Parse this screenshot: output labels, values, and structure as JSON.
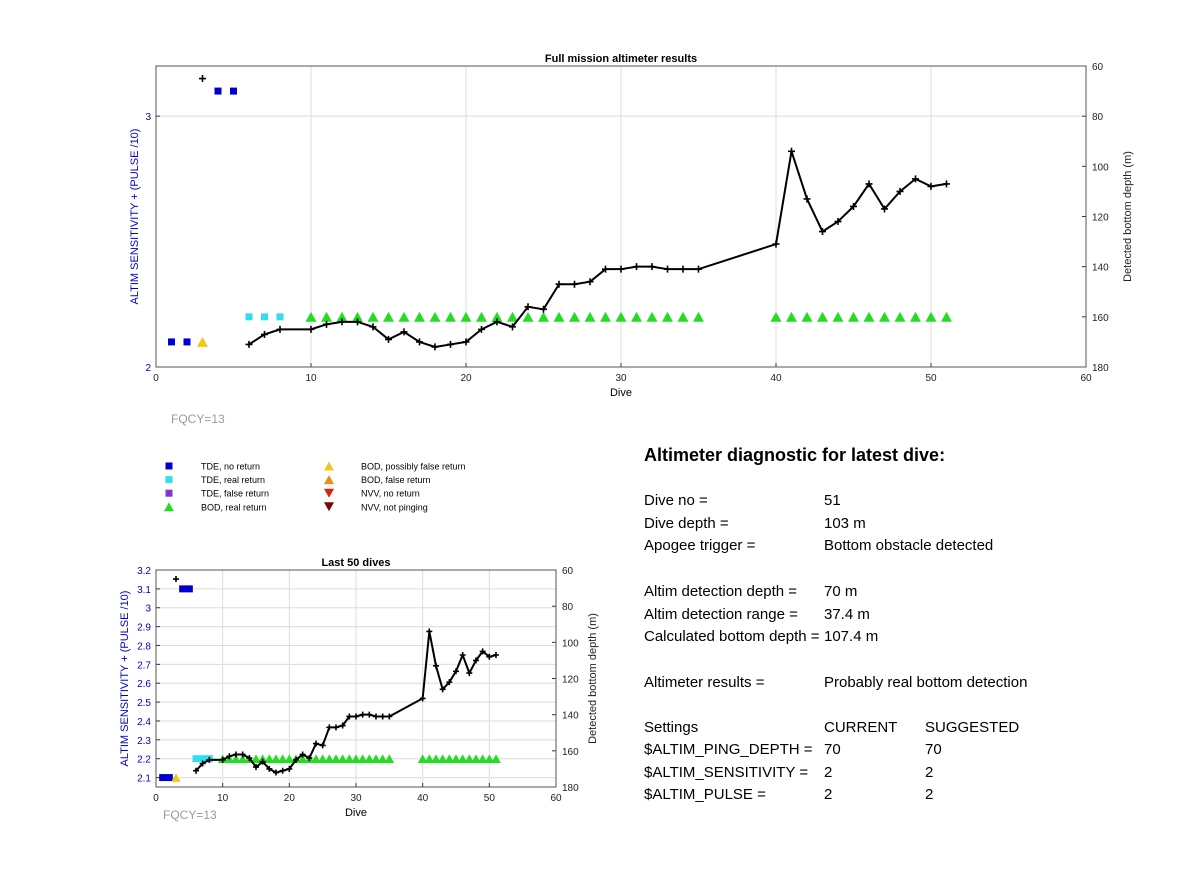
{
  "chart_data": [
    {
      "type": "scatter",
      "title": "Full mission altimeter results",
      "xlabel": "Dive",
      "ylabel_left": "ALTIM SENSITIVITY + (PULSE /10)",
      "ylabel_right": "Detected bottom depth (m)",
      "xlim": [
        0,
        60
      ],
      "ylim_left": [
        2,
        3.2
      ],
      "ylim_right": [
        60,
        180
      ],
      "right_axis_reversed": true,
      "xticks": [
        "0",
        "10",
        "20",
        "30",
        "40",
        "50",
        "60"
      ],
      "yticks_left": [
        "2",
        "3"
      ],
      "yticks_right": [
        "60",
        "80",
        "100",
        "120",
        "140",
        "160",
        "180"
      ],
      "grid": true,
      "annotation": "FQCY=13",
      "series": [
        {
          "name": "TDE, no return",
          "marker": "square",
          "color": "#0000cc",
          "x": [
            1,
            2,
            4,
            5
          ],
          "y": [
            2.1,
            2.1,
            3.1,
            3.1
          ]
        },
        {
          "name": "TDE, real return",
          "marker": "square",
          "color": "#33ddee",
          "x": [
            6,
            7,
            8
          ],
          "y": [
            2.2,
            2.2,
            2.2
          ]
        },
        {
          "name": "BOD, possibly false return",
          "marker": "triangle-up",
          "color": "#f5c518",
          "x": [
            3
          ],
          "y": [
            2.1
          ]
        },
        {
          "name": "BOD, real return",
          "marker": "triangle-up",
          "color": "#22dd22",
          "x": [
            10,
            11,
            12,
            13,
            14,
            15,
            16,
            17,
            18,
            19,
            20,
            21,
            22,
            23,
            24,
            25,
            26,
            27,
            28,
            29,
            30,
            31,
            32,
            33,
            34,
            35,
            40,
            41,
            42,
            43,
            44,
            45,
            46,
            47,
            48,
            49,
            50,
            51
          ],
          "y": [
            2.2,
            2.2,
            2.2,
            2.2,
            2.2,
            2.2,
            2.2,
            2.2,
            2.2,
            2.2,
            2.2,
            2.2,
            2.2,
            2.2,
            2.2,
            2.2,
            2.2,
            2.2,
            2.2,
            2.2,
            2.2,
            2.2,
            2.2,
            2.2,
            2.2,
            2.2,
            2.2,
            2.2,
            2.2,
            2.2,
            2.2,
            2.2,
            2.2,
            2.2,
            2.2,
            2.2,
            2.2,
            2.2
          ]
        },
        {
          "name": "Detected bottom depth",
          "marker": "plus-line",
          "color": "#000000",
          "axis": "right",
          "x": [
            3,
            6,
            7,
            8,
            10,
            11,
            12,
            13,
            14,
            15,
            16,
            17,
            18,
            19,
            20,
            21,
            22,
            23,
            24,
            25,
            26,
            27,
            28,
            29,
            30,
            31,
            32,
            33,
            34,
            35,
            40,
            41,
            42,
            43,
            44,
            45,
            46,
            47,
            48,
            49,
            50,
            51
          ],
          "y": [
            65,
            171,
            167,
            165,
            165,
            163,
            162,
            162,
            164,
            169,
            166,
            170,
            172,
            171,
            170,
            165,
            162,
            164,
            156,
            157,
            147,
            147,
            146,
            141,
            141,
            140,
            140,
            141,
            141,
            141,
            131,
            94,
            113,
            126,
            122,
            116,
            107,
            117,
            110,
            105,
            108,
            107
          ]
        }
      ]
    },
    {
      "type": "scatter",
      "title": "Last 50 dives",
      "xlabel": "Dive",
      "ylabel_left": "ALTIM SENSITIVITY + (PULSE /10)",
      "ylabel_right": "Detected bottom depth (m)",
      "xlim": [
        0,
        60
      ],
      "ylim_left": [
        2.05,
        3.2
      ],
      "ylim_right": [
        60,
        180
      ],
      "right_axis_reversed": true,
      "xticks": [
        "0",
        "10",
        "20",
        "30",
        "40",
        "50",
        "60"
      ],
      "yticks_left": [
        "2.1",
        "2.2",
        "2.3",
        "2.4",
        "2.5",
        "2.6",
        "2.7",
        "2.8",
        "2.9",
        "3",
        "3.1",
        "3.2"
      ],
      "yticks_right": [
        "60",
        "80",
        "100",
        "120",
        "140",
        "160",
        "180"
      ],
      "grid": true,
      "annotation": "FQCY=13",
      "series_ref": "same as full mission"
    }
  ],
  "legend": [
    {
      "label": "TDE, no return",
      "marker": "square",
      "color": "#0000cc"
    },
    {
      "label": "TDE, real return",
      "marker": "square",
      "color": "#33ddee"
    },
    {
      "label": "TDE, false return",
      "marker": "square",
      "color": "#8833cc"
    },
    {
      "label": "BOD, real return",
      "marker": "triangle-up",
      "color": "#22dd22"
    },
    {
      "label": "BOD, possibly false return",
      "marker": "triangle-up",
      "color": "#f5c518"
    },
    {
      "label": "BOD, false return",
      "marker": "triangle-up",
      "color": "#f08a1c"
    },
    {
      "label": "NVV, no return",
      "marker": "triangle-down",
      "color": "#dd2211"
    },
    {
      "label": "NVV, not pinging",
      "marker": "triangle-down",
      "color": "#7a0a0a"
    }
  ],
  "colors": {
    "axis_label_left": "#0000cc",
    "grid": "#dcdcdc",
    "annotation": "#999999"
  },
  "diagnostic": {
    "title": "Altimeter diagnostic for latest dive:",
    "rows": [
      {
        "label": "Dive no =",
        "value": "51"
      },
      {
        "label": "Dive depth =",
        "value": "103 m"
      },
      {
        "label": "Apogee trigger =",
        "value": "Bottom obstacle detected"
      },
      {
        "label": "Altim detection depth =",
        "value": "70 m"
      },
      {
        "label": "Altim detection range =",
        "value": "37.4 m"
      },
      {
        "label": "Calculated bottom depth =",
        "value": "107.4 m"
      },
      {
        "label": "Altimeter results =",
        "value": "Probably real bottom detection"
      }
    ],
    "settings": {
      "header": [
        "Settings",
        "CURRENT",
        "SUGGESTED"
      ],
      "rows": [
        [
          "$ALTIM_PING_DEPTH =",
          "70",
          "70"
        ],
        [
          "$ALTIM_SENSITIVITY =",
          "2",
          "2"
        ],
        [
          "$ALTIM_PULSE =",
          "2",
          "2"
        ]
      ]
    }
  }
}
